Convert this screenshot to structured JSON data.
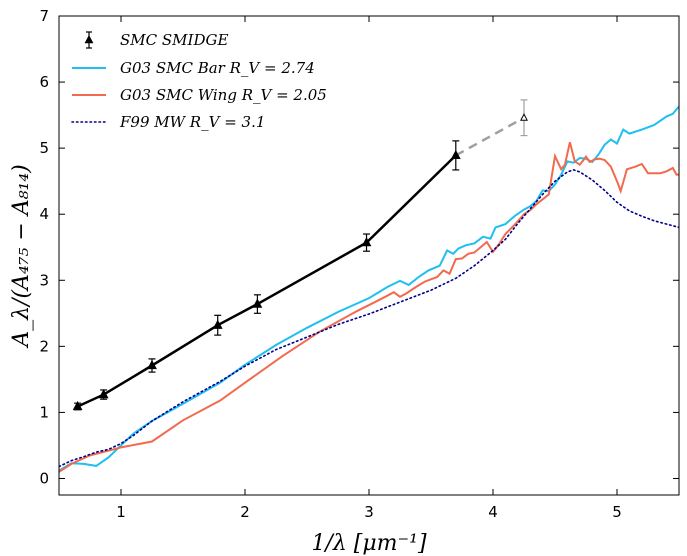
{
  "chart_data": {
    "type": "line",
    "xlabel": "1/λ [μm⁻¹]",
    "ylabel": "A_λ/(A₄₇₅ − A₈₁₄)",
    "xlim": [
      0.5,
      5.5
    ],
    "ylim": [
      -0.25,
      7
    ],
    "x_ticks": [
      1,
      2,
      3,
      4,
      5
    ],
    "y_ticks": [
      0,
      1,
      2,
      3,
      4,
      5,
      6,
      7
    ],
    "grid": false,
    "legend_position": "top-left",
    "legend": [
      {
        "key": "smidge",
        "label": "SMC SMIDGE"
      },
      {
        "key": "bar",
        "label": "G03 SMC Bar R_V = 2.74"
      },
      {
        "key": "wing",
        "label": "G03 SMC Wing R_V = 2.05"
      },
      {
        "key": "f99",
        "label": "F99 MW R_V = 3.1"
      }
    ],
    "colors": {
      "smidge": "#000000",
      "extrapolated": "#a0a0a0",
      "bar": "#1fbff0",
      "wing": "#f26a4d",
      "f99": "#00008b"
    },
    "series": [
      {
        "key": "smidge",
        "name": "SMC SMIDGE",
        "style": "solid-markers-errorbars",
        "points": [
          {
            "x": 0.65,
            "y": 1.09,
            "err": 0.05
          },
          {
            "x": 0.86,
            "y": 1.27,
            "err": 0.07
          },
          {
            "x": 1.25,
            "y": 1.71,
            "err": 0.1
          },
          {
            "x": 1.78,
            "y": 2.32,
            "err": 0.15
          },
          {
            "x": 2.1,
            "y": 2.64,
            "err": 0.14
          },
          {
            "x": 2.98,
            "y": 3.57,
            "err": 0.13
          },
          {
            "x": 3.7,
            "y": 4.89,
            "err": 0.22
          }
        ],
        "extrapolated_point": {
          "x": 4.25,
          "y": 5.46,
          "err": 0.27
        }
      },
      {
        "key": "bar",
        "name": "G03 SMC Bar R_V = 2.74",
        "style": "solid",
        "points": [
          [
            0.5,
            0.12
          ],
          [
            0.6,
            0.23
          ],
          [
            0.7,
            0.22
          ],
          [
            0.8,
            0.19
          ],
          [
            0.9,
            0.32
          ],
          [
            1.0,
            0.5
          ],
          [
            1.1,
            0.68
          ],
          [
            1.25,
            0.87
          ],
          [
            1.5,
            1.13
          ],
          [
            1.8,
            1.45
          ],
          [
            2.0,
            1.72
          ],
          [
            2.25,
            2.02
          ],
          [
            2.5,
            2.28
          ],
          [
            2.75,
            2.52
          ],
          [
            3.0,
            2.73
          ],
          [
            3.15,
            2.9
          ],
          [
            3.25,
            2.99
          ],
          [
            3.32,
            2.93
          ],
          [
            3.4,
            3.05
          ],
          [
            3.48,
            3.15
          ],
          [
            3.57,
            3.22
          ],
          [
            3.63,
            3.45
          ],
          [
            3.68,
            3.4
          ],
          [
            3.72,
            3.48
          ],
          [
            3.78,
            3.53
          ],
          [
            3.85,
            3.56
          ],
          [
            3.92,
            3.66
          ],
          [
            3.98,
            3.63
          ],
          [
            4.02,
            3.8
          ],
          [
            4.1,
            3.85
          ],
          [
            4.18,
            3.98
          ],
          [
            4.25,
            4.07
          ],
          [
            4.3,
            4.12
          ],
          [
            4.35,
            4.2
          ],
          [
            4.4,
            4.36
          ],
          [
            4.45,
            4.35
          ],
          [
            4.5,
            4.45
          ],
          [
            4.55,
            4.6
          ],
          [
            4.6,
            4.8
          ],
          [
            4.65,
            4.78
          ],
          [
            4.7,
            4.85
          ],
          [
            4.75,
            4.84
          ],
          [
            4.8,
            4.79
          ],
          [
            4.85,
            4.9
          ],
          [
            4.9,
            5.05
          ],
          [
            4.95,
            5.13
          ],
          [
            5.0,
            5.07
          ],
          [
            5.05,
            5.28
          ],
          [
            5.1,
            5.22
          ],
          [
            5.2,
            5.28
          ],
          [
            5.3,
            5.35
          ],
          [
            5.4,
            5.48
          ],
          [
            5.45,
            5.52
          ],
          [
            5.5,
            5.63
          ]
        ]
      },
      {
        "key": "wing",
        "name": "G03 SMC Wing R_V = 2.05",
        "style": "solid",
        "points": [
          [
            0.5,
            0.1
          ],
          [
            0.6,
            0.22
          ],
          [
            0.75,
            0.35
          ],
          [
            0.9,
            0.42
          ],
          [
            1.0,
            0.47
          ],
          [
            1.25,
            0.56
          ],
          [
            1.5,
            0.88
          ],
          [
            1.8,
            1.18
          ],
          [
            2.0,
            1.45
          ],
          [
            2.3,
            1.85
          ],
          [
            2.6,
            2.22
          ],
          [
            2.9,
            2.53
          ],
          [
            3.1,
            2.72
          ],
          [
            3.2,
            2.82
          ],
          [
            3.25,
            2.75
          ],
          [
            3.3,
            2.8
          ],
          [
            3.38,
            2.9
          ],
          [
            3.45,
            2.98
          ],
          [
            3.55,
            3.05
          ],
          [
            3.6,
            3.15
          ],
          [
            3.65,
            3.1
          ],
          [
            3.7,
            3.32
          ],
          [
            3.75,
            3.33
          ],
          [
            3.8,
            3.4
          ],
          [
            3.85,
            3.42
          ],
          [
            3.9,
            3.5
          ],
          [
            3.95,
            3.58
          ],
          [
            4.0,
            3.43
          ],
          [
            4.05,
            3.55
          ],
          [
            4.1,
            3.7
          ],
          [
            4.18,
            3.85
          ],
          [
            4.25,
            4.0
          ],
          [
            4.3,
            4.06
          ],
          [
            4.35,
            4.15
          ],
          [
            4.45,
            4.3
          ],
          [
            4.5,
            4.88
          ],
          [
            4.55,
            4.68
          ],
          [
            4.58,
            4.75
          ],
          [
            4.62,
            5.09
          ],
          [
            4.66,
            4.8
          ],
          [
            4.7,
            4.75
          ],
          [
            4.75,
            4.87
          ],
          [
            4.78,
            4.79
          ],
          [
            4.82,
            4.83
          ],
          [
            4.86,
            4.84
          ],
          [
            4.9,
            4.82
          ],
          [
            4.95,
            4.72
          ],
          [
            5.0,
            4.5
          ],
          [
            5.03,
            4.35
          ],
          [
            5.08,
            4.68
          ],
          [
            5.15,
            4.72
          ],
          [
            5.2,
            4.76
          ],
          [
            5.25,
            4.62
          ],
          [
            5.35,
            4.62
          ],
          [
            5.4,
            4.65
          ],
          [
            5.45,
            4.7
          ],
          [
            5.48,
            4.6
          ],
          [
            5.5,
            4.6
          ]
        ]
      },
      {
        "key": "f99",
        "name": "F99 MW R_V = 3.1",
        "style": "dotted",
        "points": [
          [
            0.5,
            0.18
          ],
          [
            0.6,
            0.27
          ],
          [
            0.7,
            0.33
          ],
          [
            0.8,
            0.4
          ],
          [
            0.9,
            0.44
          ],
          [
            1.0,
            0.53
          ],
          [
            1.1,
            0.65
          ],
          [
            1.25,
            0.87
          ],
          [
            1.5,
            1.16
          ],
          [
            1.8,
            1.47
          ],
          [
            2.0,
            1.7
          ],
          [
            2.25,
            1.95
          ],
          [
            2.5,
            2.14
          ],
          [
            2.75,
            2.33
          ],
          [
            3.0,
            2.49
          ],
          [
            3.25,
            2.67
          ],
          [
            3.5,
            2.85
          ],
          [
            3.7,
            3.03
          ],
          [
            3.85,
            3.22
          ],
          [
            4.0,
            3.45
          ],
          [
            4.1,
            3.62
          ],
          [
            4.2,
            3.86
          ],
          [
            4.3,
            4.08
          ],
          [
            4.4,
            4.3
          ],
          [
            4.5,
            4.5
          ],
          [
            4.6,
            4.64
          ],
          [
            4.65,
            4.67
          ],
          [
            4.7,
            4.64
          ],
          [
            4.8,
            4.52
          ],
          [
            4.9,
            4.36
          ],
          [
            5.0,
            4.18
          ],
          [
            5.1,
            4.05
          ],
          [
            5.2,
            3.97
          ],
          [
            5.3,
            3.9
          ],
          [
            5.4,
            3.85
          ],
          [
            5.5,
            3.8
          ]
        ]
      }
    ]
  }
}
